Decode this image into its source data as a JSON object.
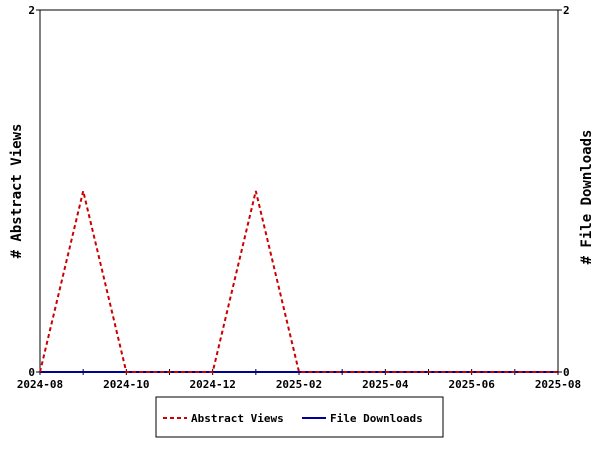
{
  "chart_data": {
    "type": "line",
    "x": [
      "2024-08",
      "2024-09",
      "2024-10",
      "2024-11",
      "2024-12",
      "2025-01",
      "2025-02",
      "2025-03",
      "2025-04",
      "2025-05",
      "2025-06",
      "2025-07",
      "2025-08"
    ],
    "x_tick_labels": [
      "2024-08",
      "2024-10",
      "2024-12",
      "2025-02",
      "2025-04",
      "2025-06",
      "2025-08"
    ],
    "series": [
      {
        "name": "Abstract Views",
        "axis": "left",
        "color": "#cc0000",
        "dash": "dashed",
        "values": [
          0,
          1,
          0,
          0,
          0,
          1,
          0,
          0,
          0,
          0,
          0,
          0,
          0
        ]
      },
      {
        "name": "File Downloads",
        "axis": "right",
        "color": "#000099",
        "dash": "solid",
        "values": [
          0,
          0,
          0,
          0,
          0,
          0,
          0,
          0,
          0,
          0,
          0,
          0,
          0
        ]
      }
    ],
    "ylabel_left": "# Abstract Views",
    "ylabel_right": "# File Downloads",
    "ylim_left": [
      0,
      2
    ],
    "ylim_right": [
      0,
      2
    ],
    "y_ticks_left": [
      "0",
      "2"
    ],
    "y_ticks_right": [
      "0",
      "2"
    ],
    "grid": false,
    "legend_position": "bottom"
  }
}
